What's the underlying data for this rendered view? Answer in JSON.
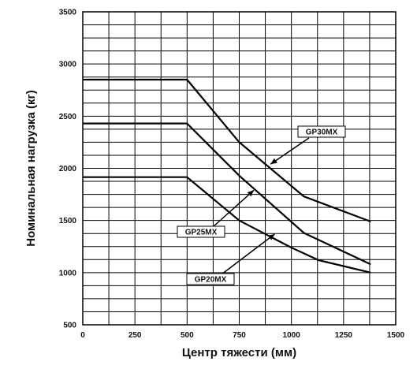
{
  "chart_data": {
    "type": "line",
    "xlabel": "Центр тяжести (мм)",
    "ylabel": "Номинальная нагрузка (кг)",
    "xlim": [
      0,
      1500
    ],
    "ylim": [
      500,
      3500
    ],
    "x_ticks": [
      0,
      250,
      500,
      750,
      1000,
      1250,
      1500
    ],
    "y_ticks": [
      500,
      1000,
      1500,
      2000,
      2500,
      3000,
      3500
    ],
    "grid": true,
    "series": [
      {
        "name": "GP30MX",
        "x": [
          0,
          500,
          750,
          1060,
          1380
        ],
        "y": [
          2850,
          2850,
          2250,
          1730,
          1490
        ]
      },
      {
        "name": "GP25MX",
        "x": [
          0,
          500,
          750,
          1060,
          1380
        ],
        "y": [
          2430,
          2430,
          1930,
          1380,
          1080
        ]
      },
      {
        "name": "GP20MX",
        "x": [
          0,
          500,
          750,
          1000,
          1130,
          1380
        ],
        "y": [
          1915,
          1915,
          1500,
          1240,
          1120,
          1000
        ]
      }
    ]
  }
}
